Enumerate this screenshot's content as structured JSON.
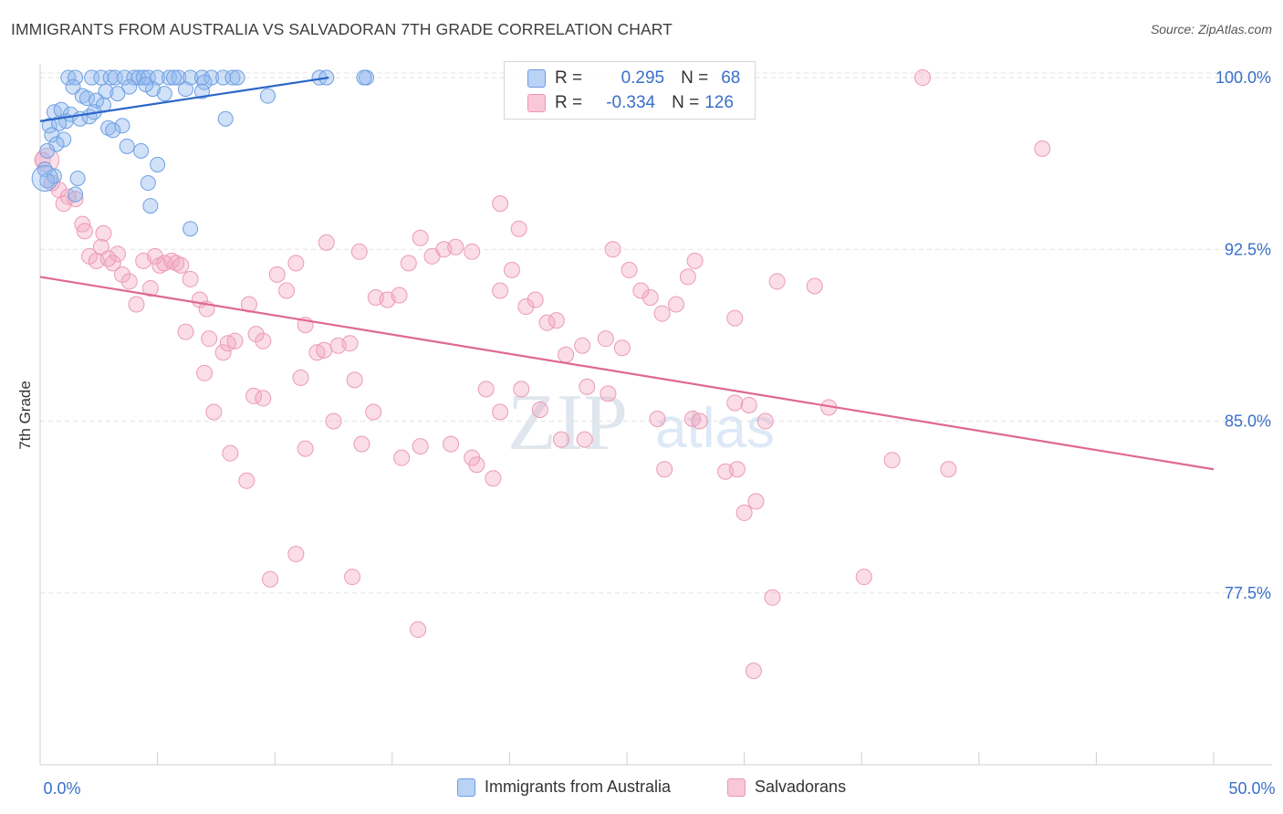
{
  "title": "IMMIGRANTS FROM AUSTRALIA VS SALVADORAN 7TH GRADE CORRELATION CHART",
  "source": "Source: ZipAtlas.com",
  "watermark": {
    "zip": "ZIP",
    "atlas": "atlas"
  },
  "legend": {
    "r_label": "R =",
    "n_label": "N =",
    "series1": {
      "r": "0.295",
      "n": "68"
    },
    "series2": {
      "r": "-0.334",
      "n": "126"
    }
  },
  "chart_data": {
    "type": "scatter",
    "title": "IMMIGRANTS FROM AUSTRALIA VS SALVADORAN 7TH GRADE CORRELATION CHART",
    "xlabel": "",
    "ylabel": "7th Grade",
    "xlim": [
      0,
      50
    ],
    "ylim": [
      70.0,
      100.6
    ],
    "x_tick_labels": [
      "0.0%",
      "50.0%"
    ],
    "y_ticks": [
      {
        "value": 100.0,
        "label": "100.0%"
      },
      {
        "value": 92.5,
        "label": "92.5%"
      },
      {
        "value": 85.0,
        "label": "85.0%"
      },
      {
        "value": 77.5,
        "label": "77.5%"
      }
    ],
    "grid": true,
    "colors": {
      "series1": "#8fb8ee",
      "series1_line": "#2a66c8",
      "series2": "#f3a6c0",
      "series2_line": "#e06890"
    },
    "series": [
      {
        "name": "Immigrants from Australia",
        "r": 0.295,
        "n": 68,
        "trend": {
          "x": [
            0.0,
            12.3
          ],
          "y": [
            98.1,
            100.0
          ]
        },
        "points": [
          [
            1.2,
            100.0
          ],
          [
            1.5,
            100.0
          ],
          [
            2.2,
            100.0
          ],
          [
            2.6,
            100.0
          ],
          [
            3.0,
            100.0
          ],
          [
            3.2,
            100.0
          ],
          [
            3.6,
            100.0
          ],
          [
            4.0,
            100.0
          ],
          [
            4.2,
            100.0
          ],
          [
            4.4,
            100.0
          ],
          [
            4.6,
            100.0
          ],
          [
            5.0,
            100.0
          ],
          [
            5.5,
            100.0
          ],
          [
            5.9,
            100.0
          ],
          [
            6.4,
            100.0
          ],
          [
            6.9,
            100.0
          ],
          [
            7.3,
            100.0
          ],
          [
            7.8,
            100.0
          ],
          [
            8.2,
            100.0
          ],
          [
            8.4,
            100.0
          ],
          [
            11.9,
            100.0
          ],
          [
            12.2,
            100.0
          ],
          [
            13.9,
            100.0
          ],
          [
            1.4,
            99.6
          ],
          [
            2.8,
            99.4
          ],
          [
            3.3,
            99.3
          ],
          [
            5.3,
            99.3
          ],
          [
            1.8,
            99.2
          ],
          [
            2.0,
            99.1
          ],
          [
            4.8,
            99.5
          ],
          [
            2.4,
            99.0
          ],
          [
            6.2,
            99.5
          ],
          [
            7.0,
            99.8
          ],
          [
            4.5,
            99.7
          ],
          [
            3.8,
            99.6
          ],
          [
            0.6,
            98.5
          ],
          [
            0.9,
            98.6
          ],
          [
            1.3,
            98.4
          ],
          [
            2.7,
            98.8
          ],
          [
            1.1,
            98.1
          ],
          [
            1.7,
            98.2
          ],
          [
            0.4,
            97.9
          ],
          [
            0.8,
            98.0
          ],
          [
            2.1,
            98.3
          ],
          [
            2.9,
            97.8
          ],
          [
            3.5,
            97.9
          ],
          [
            0.5,
            97.5
          ],
          [
            1.0,
            97.3
          ],
          [
            0.7,
            97.1
          ],
          [
            0.3,
            96.8
          ],
          [
            3.1,
            97.7
          ],
          [
            3.7,
            97.0
          ],
          [
            4.3,
            96.8
          ],
          [
            5.0,
            96.2
          ],
          [
            0.2,
            96.0
          ],
          [
            0.6,
            95.7
          ],
          [
            1.6,
            95.6
          ],
          [
            4.6,
            95.4
          ],
          [
            1.5,
            94.9
          ],
          [
            4.7,
            94.4
          ],
          [
            6.4,
            93.4
          ],
          [
            9.7,
            99.2
          ],
          [
            7.9,
            98.2
          ],
          [
            13.8,
            100.0
          ],
          [
            0.3,
            95.5
          ],
          [
            2.3,
            98.5
          ],
          [
            5.7,
            100.0
          ],
          [
            6.9,
            99.4
          ]
        ]
      },
      {
        "name": "Salvadorans",
        "r": -0.334,
        "n": 126,
        "trend": {
          "x": [
            0.0,
            50.0
          ],
          "y": [
            91.3,
            82.9
          ]
        },
        "points": [
          [
            0.1,
            96.4
          ],
          [
            0.5,
            95.4
          ],
          [
            0.8,
            95.1
          ],
          [
            1.2,
            94.8
          ],
          [
            1.0,
            94.5
          ],
          [
            1.5,
            94.7
          ],
          [
            1.8,
            93.6
          ],
          [
            2.7,
            93.2
          ],
          [
            1.9,
            93.3
          ],
          [
            2.1,
            92.2
          ],
          [
            2.4,
            92.0
          ],
          [
            2.6,
            92.6
          ],
          [
            3.3,
            92.3
          ],
          [
            2.9,
            92.1
          ],
          [
            3.1,
            91.9
          ],
          [
            4.4,
            92.0
          ],
          [
            3.5,
            91.4
          ],
          [
            3.8,
            91.1
          ],
          [
            4.1,
            90.1
          ],
          [
            4.7,
            90.8
          ],
          [
            5.1,
            91.8
          ],
          [
            5.6,
            92.0
          ],
          [
            5.8,
            91.9
          ],
          [
            4.9,
            92.2
          ],
          [
            5.3,
            91.9
          ],
          [
            6.0,
            91.8
          ],
          [
            6.4,
            91.2
          ],
          [
            6.8,
            90.3
          ],
          [
            7.1,
            89.9
          ],
          [
            6.2,
            88.9
          ],
          [
            7.2,
            88.6
          ],
          [
            7.8,
            88.0
          ],
          [
            8.3,
            88.5
          ],
          [
            8.9,
            90.1
          ],
          [
            9.2,
            88.8
          ],
          [
            9.5,
            88.5
          ],
          [
            8.0,
            88.4
          ],
          [
            10.1,
            91.4
          ],
          [
            10.5,
            90.7
          ],
          [
            10.9,
            91.9
          ],
          [
            11.3,
            89.2
          ],
          [
            11.8,
            88.0
          ],
          [
            12.1,
            88.1
          ],
          [
            12.7,
            88.3
          ],
          [
            13.2,
            88.4
          ],
          [
            13.4,
            86.8
          ],
          [
            12.2,
            92.8
          ],
          [
            13.6,
            92.4
          ],
          [
            14.3,
            90.4
          ],
          [
            14.8,
            90.3
          ],
          [
            15.3,
            90.5
          ],
          [
            15.7,
            91.9
          ],
          [
            16.2,
            93.0
          ],
          [
            16.7,
            92.2
          ],
          [
            17.2,
            92.5
          ],
          [
            17.7,
            92.6
          ],
          [
            18.4,
            92.4
          ],
          [
            19.6,
            90.7
          ],
          [
            20.1,
            91.6
          ],
          [
            20.7,
            90.0
          ],
          [
            21.1,
            90.3
          ],
          [
            21.6,
            89.3
          ],
          [
            22.0,
            89.4
          ],
          [
            22.4,
            87.9
          ],
          [
            23.1,
            88.3
          ],
          [
            24.4,
            92.5
          ],
          [
            25.1,
            91.6
          ],
          [
            25.6,
            90.7
          ],
          [
            26.0,
            90.4
          ],
          [
            26.5,
            89.7
          ],
          [
            27.1,
            90.1
          ],
          [
            27.6,
            91.3
          ],
          [
            24.1,
            88.6
          ],
          [
            24.8,
            88.2
          ],
          [
            20.4,
            93.4
          ],
          [
            19.6,
            94.5
          ],
          [
            9.1,
            86.1
          ],
          [
            9.5,
            86.0
          ],
          [
            11.1,
            86.9
          ],
          [
            12.5,
            85.0
          ],
          [
            14.2,
            85.4
          ],
          [
            19.0,
            86.4
          ],
          [
            19.6,
            85.4
          ],
          [
            20.5,
            86.4
          ],
          [
            21.3,
            85.5
          ],
          [
            22.2,
            84.2
          ],
          [
            23.3,
            86.5
          ],
          [
            24.2,
            86.2
          ],
          [
            26.3,
            85.1
          ],
          [
            27.8,
            85.1
          ],
          [
            29.6,
            85.8
          ],
          [
            28.1,
            85.0
          ],
          [
            30.2,
            85.7
          ],
          [
            30.9,
            85.0
          ],
          [
            33.6,
            85.6
          ],
          [
            36.3,
            83.3
          ],
          [
            38.7,
            82.9
          ],
          [
            29.2,
            82.8
          ],
          [
            29.7,
            82.9
          ],
          [
            30.0,
            81.0
          ],
          [
            30.5,
            81.5
          ],
          [
            15.4,
            83.4
          ],
          [
            16.2,
            83.9
          ],
          [
            17.5,
            84.0
          ],
          [
            18.4,
            83.4
          ],
          [
            18.6,
            83.1
          ],
          [
            19.3,
            82.5
          ],
          [
            10.9,
            79.2
          ],
          [
            9.8,
            78.1
          ],
          [
            13.3,
            78.2
          ],
          [
            16.1,
            75.9
          ],
          [
            31.2,
            77.3
          ],
          [
            35.1,
            78.2
          ],
          [
            30.4,
            74.1
          ],
          [
            7.4,
            85.4
          ],
          [
            8.1,
            83.6
          ],
          [
            8.8,
            82.4
          ],
          [
            11.3,
            83.8
          ],
          [
            13.7,
            84.0
          ],
          [
            23.2,
            84.2
          ],
          [
            26.6,
            82.9
          ],
          [
            37.6,
            100.0
          ],
          [
            42.7,
            96.9
          ],
          [
            31.4,
            91.1
          ],
          [
            33.0,
            90.9
          ],
          [
            27.9,
            92.0
          ],
          [
            29.6,
            89.5
          ],
          [
            7.0,
            87.1
          ]
        ]
      }
    ]
  },
  "bottom_legend": {
    "series1_label": "Immigrants from Australia",
    "series2_label": "Salvadorans"
  }
}
